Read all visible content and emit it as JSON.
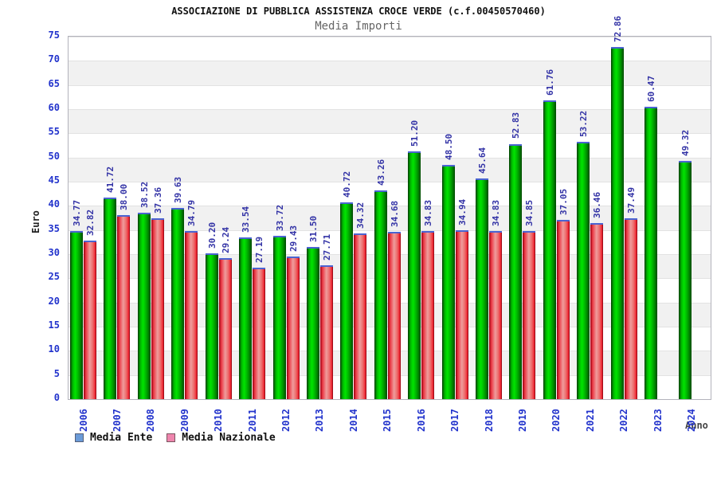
{
  "header": {
    "title": "ASSOCIAZIONE DI PUBBLICA ASSISTENZA CROCE VERDE (c.f.00450570460)",
    "subtitle": "Media Importi"
  },
  "chart_data": {
    "type": "bar",
    "title": "ASSOCIAZIONE DI PUBBLICA ASSISTENZA CROCE VERDE (c.f.00450570460)",
    "subtitle": "Media Importi",
    "xlabel": "Anno",
    "ylabel": "Euro",
    "ylim": [
      0,
      75
    ],
    "y_tick_step": 5,
    "grid": "alternating horizontal bands white/light-gray every 5 units with thin gridlines",
    "legend_position": "bottom-left",
    "value_labels": "rotated 90deg above each bar, two decimals",
    "categories": [
      "2006",
      "2007",
      "2008",
      "2009",
      "2010",
      "2011",
      "2012",
      "2013",
      "2014",
      "2015",
      "2016",
      "2017",
      "2018",
      "2019",
      "2020",
      "2021",
      "2022",
      "2023",
      "2024"
    ],
    "series": [
      {
        "name": "Media Ente",
        "bar_color": "#00cc00",
        "legend_swatch_color": "#6b9bd8",
        "values": [
          34.77,
          41.72,
          38.52,
          39.63,
          30.2,
          33.54,
          33.72,
          31.5,
          40.72,
          43.26,
          51.2,
          48.5,
          45.64,
          52.83,
          61.76,
          53.22,
          72.86,
          60.47,
          49.32
        ]
      },
      {
        "name": "Media Nazionale",
        "bar_color": "#ee5566",
        "legend_swatch_color": "#ee85ad",
        "values": [
          32.82,
          38.0,
          37.36,
          34.79,
          29.24,
          27.19,
          29.43,
          27.71,
          34.32,
          34.68,
          34.83,
          34.94,
          34.83,
          34.85,
          37.05,
          36.46,
          37.49,
          null,
          null
        ]
      }
    ]
  },
  "colors": {
    "tick_label": "#2233cc",
    "value_label": "#3333a6",
    "bar_top_cap": "#4a64d2",
    "band_gray": "#f1f1f1",
    "band_white": "#ffffff"
  }
}
